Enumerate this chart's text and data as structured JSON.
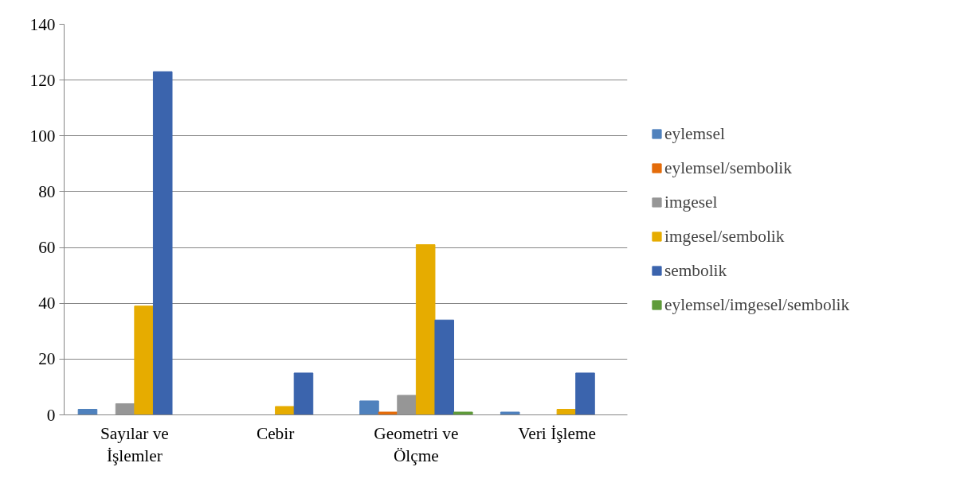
{
  "chart_data": {
    "type": "bar",
    "categories": [
      "Sayılar ve İşlemler",
      "Cebir",
      "Geometri ve Ölçme",
      "Veri İşleme"
    ],
    "series": [
      {
        "name": "eylemsel",
        "color": "#4f81bd",
        "values": [
          2,
          0,
          5,
          1
        ]
      },
      {
        "name": "eylemsel/sembolik",
        "color": "#e46c0a",
        "values": [
          0,
          0,
          1,
          0
        ]
      },
      {
        "name": "imgesel",
        "color": "#969696",
        "values": [
          4,
          0,
          7,
          0
        ]
      },
      {
        "name": "imgesel/sembolik",
        "color": "#e6ac00",
        "values": [
          39,
          3,
          61,
          2
        ]
      },
      {
        "name": "sembolik",
        "color": "#3b64ad",
        "values": [
          123,
          15,
          34,
          15
        ]
      },
      {
        "name": "eylemsel/imgesel/sembolik",
        "color": "#5f9b3a",
        "values": [
          0,
          0,
          1,
          0
        ]
      }
    ],
    "ylim": [
      0,
      140
    ],
    "yticks": [
      0,
      20,
      40,
      60,
      80,
      100,
      120,
      140
    ],
    "grid": "y",
    "legend": "right"
  }
}
